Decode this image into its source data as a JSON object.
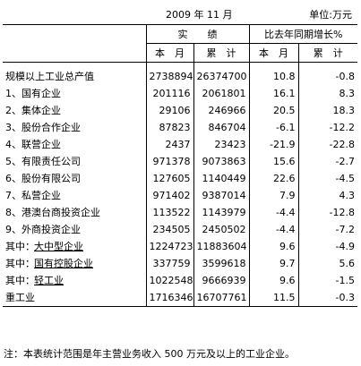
{
  "header": {
    "period": "2009 年 11 月",
    "unit": "单位:万元"
  },
  "columns": {
    "actual_group": "实　　绩",
    "growth_group": "比去年同期增长%",
    "month": "本　月",
    "cumulative": "累　计",
    "g_month": "本　月",
    "g_cumulative": "累　计"
  },
  "rows": [
    {
      "label": "规模以上工业总产值",
      "prefix": "",
      "month": "2738894",
      "cum": "26374700",
      "g_month": "10.8",
      "g_cum": "-0.8"
    },
    {
      "label": "1、国有企业",
      "prefix": "",
      "month": "201116",
      "cum": "2061801",
      "g_month": "16.1",
      "g_cum": "8.3"
    },
    {
      "label": "2、集体企业",
      "prefix": "",
      "month": "29106",
      "cum": "246966",
      "g_month": "20.5",
      "g_cum": "18.3"
    },
    {
      "label": "3、股份合作企业",
      "prefix": "",
      "month": "87823",
      "cum": "846704",
      "g_month": "-6.1",
      "g_cum": "-12.2"
    },
    {
      "label": "4、联营企业",
      "prefix": "",
      "month": "2437",
      "cum": "23423",
      "g_month": "-21.9",
      "g_cum": "-22.8"
    },
    {
      "label": "5、有限责任公司",
      "prefix": "",
      "month": "971378",
      "cum": "9073863",
      "g_month": "15.6",
      "g_cum": "-2.7"
    },
    {
      "label": "6、股份有限公司",
      "prefix": "",
      "month": "127605",
      "cum": "1140449",
      "g_month": "22.6",
      "g_cum": "-4.5"
    },
    {
      "label": "7、私营企业",
      "prefix": "",
      "month": "971402",
      "cum": "9387014",
      "g_month": "7.9",
      "g_cum": "4.3"
    },
    {
      "label": "8、港澳台商投资企业",
      "prefix": "",
      "month": "113522",
      "cum": "1143979",
      "g_month": "-4.4",
      "g_cum": "-12.8"
    },
    {
      "label": "9、外商投资企业",
      "prefix": "",
      "month": "234505",
      "cum": "2450502",
      "g_month": "-4.4",
      "g_cum": "-7.2"
    },
    {
      "label": "大中型企业",
      "prefix": "其中：",
      "month": "1224723",
      "cum": "11883604",
      "g_month": "9.6",
      "g_cum": "-4.9"
    },
    {
      "label": "国有控股企业",
      "prefix": "其中：",
      "month": "337759",
      "cum": "3599618",
      "g_month": "9.7",
      "g_cum": "5.6"
    },
    {
      "label": "轻工业",
      "prefix": "其中：",
      "month": "1022548",
      "cum": "9666939",
      "g_month": "9.6",
      "g_cum": "-1.5"
    },
    {
      "label": "重工业",
      "prefix": "",
      "month": "1716346",
      "cum": "16707761",
      "g_month": "11.5",
      "g_cum": "-0.3"
    }
  ],
  "note": "注：本表统计范围是年主营业务收入 500 万元及以上的工业企业。"
}
